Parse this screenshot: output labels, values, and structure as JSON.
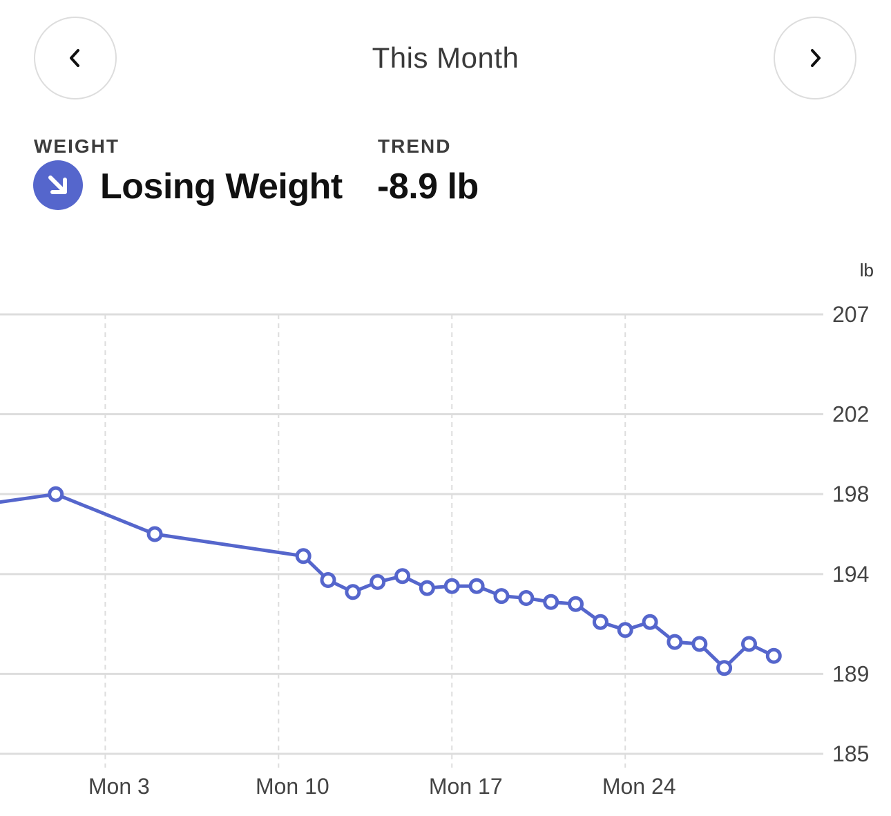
{
  "header": {
    "title": "This Month",
    "prev_icon": "chevron-left-icon",
    "next_icon": "chevron-right-icon"
  },
  "summary": {
    "weight_label": "WEIGHT",
    "status": "Losing Weight",
    "status_icon": "arrow-down-right-icon",
    "trend_label": "TREND",
    "trend_value": "-8.9 lb"
  },
  "colors": {
    "accent": "#5566cc",
    "grid": "#dddddd",
    "text_muted": "#444444"
  },
  "chart_data": {
    "type": "line",
    "unit": "lb",
    "ylim": [
      185,
      207
    ],
    "y_ticks": [
      207,
      202,
      198,
      194,
      189,
      185
    ],
    "x_ticks": [
      {
        "day": 3,
        "label": "Mon 3"
      },
      {
        "day": 10,
        "label": "Mon 10"
      },
      {
        "day": 17,
        "label": "Mon 17"
      },
      {
        "day": 24,
        "label": "Mon 24"
      }
    ],
    "xlim": [
      -1.25,
      32
    ],
    "grid": true,
    "series": [
      {
        "x": [
          1.0,
          5.0,
          11.0,
          12.0,
          13.0,
          14.0,
          15.0,
          16.0,
          17.0,
          18.0,
          19.0,
          20.0,
          21.0,
          22.0,
          23.0,
          24.0,
          25.0,
          26.0,
          27.0,
          28.0,
          29.0,
          30.0
        ],
        "y": [
          198.0,
          196.0,
          194.9,
          193.7,
          193.1,
          193.6,
          193.9,
          193.3,
          193.4,
          193.4,
          192.9,
          192.8,
          192.6,
          192.5,
          191.6,
          191.2,
          191.6,
          190.6,
          190.5,
          189.3,
          190.5,
          189.9
        ],
        "lead_in": {
          "x": -1.25,
          "y": 197.6
        }
      }
    ]
  }
}
